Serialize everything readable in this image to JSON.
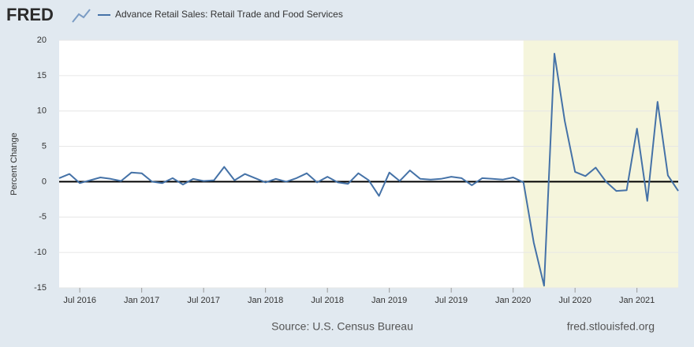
{
  "chart_data": {
    "type": "line",
    "logo": "FRED",
    "source": "Source: U.S. Census Bureau",
    "site": "fred.stlouisfed.org",
    "ylabel": "Percent Change",
    "x": [
      "2016-05",
      "2016-06",
      "2016-07",
      "2016-08",
      "2016-09",
      "2016-10",
      "2016-11",
      "2016-12",
      "2017-01",
      "2017-02",
      "2017-03",
      "2017-04",
      "2017-05",
      "2017-06",
      "2017-07",
      "2017-08",
      "2017-09",
      "2017-10",
      "2017-11",
      "2017-12",
      "2018-01",
      "2018-02",
      "2018-03",
      "2018-04",
      "2018-05",
      "2018-06",
      "2018-07",
      "2018-08",
      "2018-09",
      "2018-10",
      "2018-11",
      "2018-12",
      "2019-01",
      "2019-02",
      "2019-03",
      "2019-04",
      "2019-05",
      "2019-06",
      "2019-07",
      "2019-08",
      "2019-09",
      "2019-10",
      "2019-11",
      "2019-12",
      "2020-01",
      "2020-02",
      "2020-03",
      "2020-04",
      "2020-05",
      "2020-06",
      "2020-07",
      "2020-08",
      "2020-09",
      "2020-10",
      "2020-11",
      "2020-12",
      "2021-01",
      "2021-02",
      "2021-03",
      "2021-04",
      "2021-05"
    ],
    "series": [
      {
        "name": "Advance Retail Sales: Retail Trade and Food Services",
        "color": "#4572a7",
        "values": [
          0.5,
          1.1,
          -0.2,
          0.2,
          0.6,
          0.4,
          0.1,
          1.3,
          1.2,
          0,
          -0.2,
          0.5,
          -0.4,
          0.4,
          0.1,
          0.2,
          2.1,
          0.2,
          1.1,
          0.5,
          -0.1,
          0.4,
          0,
          0.5,
          1.2,
          -0.1,
          0.7,
          -0.1,
          -0.3,
          1.2,
          0.2,
          -2,
          1.3,
          0.1,
          1.6,
          0.4,
          0.3,
          0.4,
          0.7,
          0.5,
          -0.5,
          0.5,
          0.4,
          0.3,
          0.6,
          -0.1,
          -8.6,
          -14.7,
          18.1,
          8.6,
          1.4,
          0.8,
          2.0,
          0,
          -1.3,
          -1.2,
          7.5,
          -2.7,
          11.3,
          0.9,
          -1.3
        ]
      }
    ],
    "xlim": [
      "2016-05",
      "2021-05"
    ],
    "xticks": [
      {
        "value": "2016-07",
        "label": "Jul 2016"
      },
      {
        "value": "2017-01",
        "label": "Jan 2017"
      },
      {
        "value": "2017-07",
        "label": "Jul 2017"
      },
      {
        "value": "2018-01",
        "label": "Jan 2018"
      },
      {
        "value": "2018-07",
        "label": "Jul 2018"
      },
      {
        "value": "2019-01",
        "label": "Jan 2019"
      },
      {
        "value": "2019-07",
        "label": "Jul 2019"
      },
      {
        "value": "2020-01",
        "label": "Jan 2020"
      },
      {
        "value": "2020-07",
        "label": "Jul 2020"
      },
      {
        "value": "2021-01",
        "label": "Jan 2021"
      }
    ],
    "ylim": [
      -15,
      20
    ],
    "yticks": [
      -15,
      -10,
      -5,
      0,
      5,
      10,
      15,
      20
    ],
    "grid": true,
    "zero_line": true,
    "shaded_region": [
      "2020-02",
      "2021-05"
    ],
    "shade_color": "#f5f5dc"
  }
}
